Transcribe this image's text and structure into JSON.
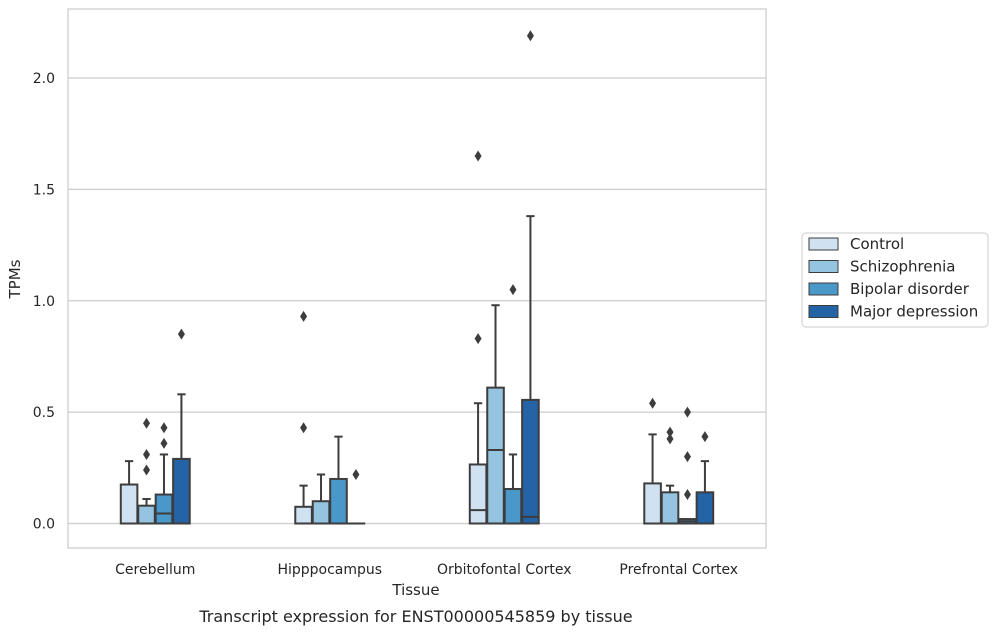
{
  "chart_data": {
    "type": "box",
    "xlabel": "Tissue",
    "ylabel": "TPMs",
    "caption": "Transcript expression for ENST00000545859 by tissue",
    "ylim": [
      -0.11,
      2.31
    ],
    "yticks": [
      "0.0",
      "0.5",
      "1.0",
      "1.5",
      "2.0"
    ],
    "ytick_values": [
      0,
      0.5,
      1.0,
      1.5,
      2.0
    ],
    "grid": "horizontal",
    "legend_position": "right",
    "categories": [
      "Cerebellum",
      "Hipppocampus",
      "Orbitofontal Cortex",
      "Prefrontal Cortex"
    ],
    "series": [
      {
        "name": "Control",
        "color": "#d0e1f2",
        "boxes": [
          {
            "q1": 0,
            "median": 0,
            "q3": 0.175,
            "whisker_low": 0,
            "whisker_high": 0.28,
            "outliers": []
          },
          {
            "q1": 0,
            "median": 0,
            "q3": 0.075,
            "whisker_low": 0,
            "whisker_high": 0.17,
            "outliers": [
              0.43,
              0.93
            ]
          },
          {
            "q1": 0,
            "median": 0.06,
            "q3": 0.265,
            "whisker_low": 0,
            "whisker_high": 0.54,
            "outliers": [
              0.83,
              1.65
            ]
          },
          {
            "q1": 0,
            "median": 0,
            "q3": 0.18,
            "whisker_low": 0,
            "whisker_high": 0.4,
            "outliers": [
              0.54
            ]
          }
        ]
      },
      {
        "name": "Schizophrenia",
        "color": "#94c4df",
        "boxes": [
          {
            "q1": 0,
            "median": 0,
            "q3": 0.08,
            "whisker_low": 0,
            "whisker_high": 0.11,
            "outliers": [
              0.24,
              0.31,
              0.45
            ]
          },
          {
            "q1": 0,
            "median": 0,
            "q3": 0.1,
            "whisker_low": 0,
            "whisker_high": 0.22,
            "outliers": []
          },
          {
            "q1": 0,
            "median": 0.33,
            "q3": 0.61,
            "whisker_low": 0,
            "whisker_high": 0.98,
            "outliers": []
          },
          {
            "q1": 0,
            "median": 0,
            "q3": 0.14,
            "whisker_low": 0,
            "whisker_high": 0.17,
            "outliers": [
              0.38,
              0.41
            ]
          }
        ]
      },
      {
        "name": "Bipolar disorder",
        "color": "#4a98c9",
        "boxes": [
          {
            "q1": 0,
            "median": 0.045,
            "q3": 0.13,
            "whisker_low": 0,
            "whisker_high": 0.31,
            "outliers": [
              0.36,
              0.43
            ]
          },
          {
            "q1": 0,
            "median": 0,
            "q3": 0.2,
            "whisker_low": 0,
            "whisker_high": 0.39,
            "outliers": []
          },
          {
            "q1": 0,
            "median": 0,
            "q3": 0.155,
            "whisker_low": 0,
            "whisker_high": 0.31,
            "outliers": [
              1.05
            ]
          },
          {
            "q1": 0,
            "median": 0.01,
            "q3": 0.02,
            "whisker_low": 0,
            "whisker_high": 0.02,
            "outliers": [
              0.13,
              0.3,
              0.5
            ]
          }
        ]
      },
      {
        "name": "Major depression",
        "color": "#2363a6",
        "boxes": [
          {
            "q1": 0,
            "median": 0,
            "q3": 0.29,
            "whisker_low": 0,
            "whisker_high": 0.58,
            "outliers": [
              0.85
            ]
          },
          {
            "q1": 0,
            "median": 0,
            "q3": 0,
            "whisker_low": 0,
            "whisker_high": 0,
            "outliers": [
              0.22
            ]
          },
          {
            "q1": 0,
            "median": 0.03,
            "q3": 0.555,
            "whisker_low": 0,
            "whisker_high": 1.38,
            "outliers": [
              2.19
            ]
          },
          {
            "q1": 0,
            "median": 0,
            "q3": 0.14,
            "whisker_low": 0,
            "whisker_high": 0.28,
            "outliers": [
              0.39
            ]
          }
        ]
      }
    ]
  }
}
